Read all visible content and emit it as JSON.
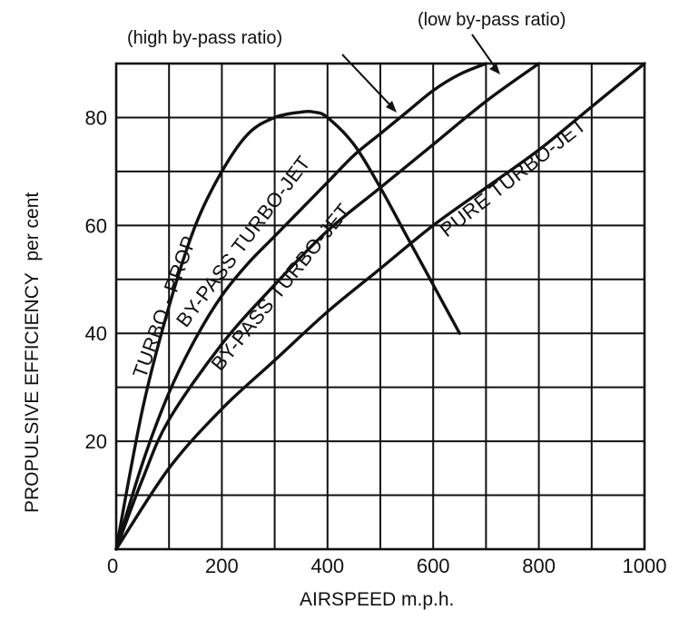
{
  "chart_data": {
    "type": "line",
    "title": "",
    "xlabel": "AIRSPEED m.p.h.",
    "ylabel_main": "PROPULSIVE EFFICIENCY",
    "ylabel_unit": "per cent",
    "xlim": [
      0,
      1000
    ],
    "ylim": [
      0,
      90
    ],
    "x_ticks": [
      0,
      200,
      400,
      600,
      800,
      1000
    ],
    "y_ticks": [
      20,
      40,
      60,
      80
    ],
    "grid": true,
    "series": [
      {
        "name": "TURBO - PROP",
        "x": [
          0,
          50,
          100,
          150,
          200,
          250,
          300,
          350,
          375,
          400,
          450,
          500,
          550,
          600,
          650
        ],
        "y": [
          0,
          26,
          45,
          60,
          70,
          77,
          80,
          81,
          81,
          80,
          75,
          67,
          58,
          49,
          40
        ]
      },
      {
        "name": "BY-PASS TURBO-JET",
        "x": [
          0,
          50,
          100,
          150,
          200,
          250,
          300,
          350,
          400,
          450,
          500,
          550,
          600,
          650,
          700
        ],
        "y": [
          0,
          16,
          29,
          39,
          47,
          53,
          58,
          63,
          68,
          73,
          77,
          81,
          85,
          88,
          90
        ]
      },
      {
        "name": "BY-PASS TURBO-JET",
        "x": [
          0,
          50,
          100,
          200,
          300,
          400,
          500,
          600,
          700,
          800
        ],
        "y": [
          0,
          13,
          24,
          38,
          49,
          59,
          67,
          75,
          83,
          90
        ]
      },
      {
        "name": "PURE TURBO-JET",
        "x": [
          0,
          100,
          200,
          300,
          400,
          500,
          600,
          700,
          800,
          900,
          1000
        ],
        "y": [
          0,
          15,
          26,
          35,
          44,
          52,
          60,
          67,
          74,
          82,
          90
        ]
      }
    ],
    "annotations": [
      "(high by-pass ratio)",
      "(low by-pass ratio)"
    ]
  }
}
